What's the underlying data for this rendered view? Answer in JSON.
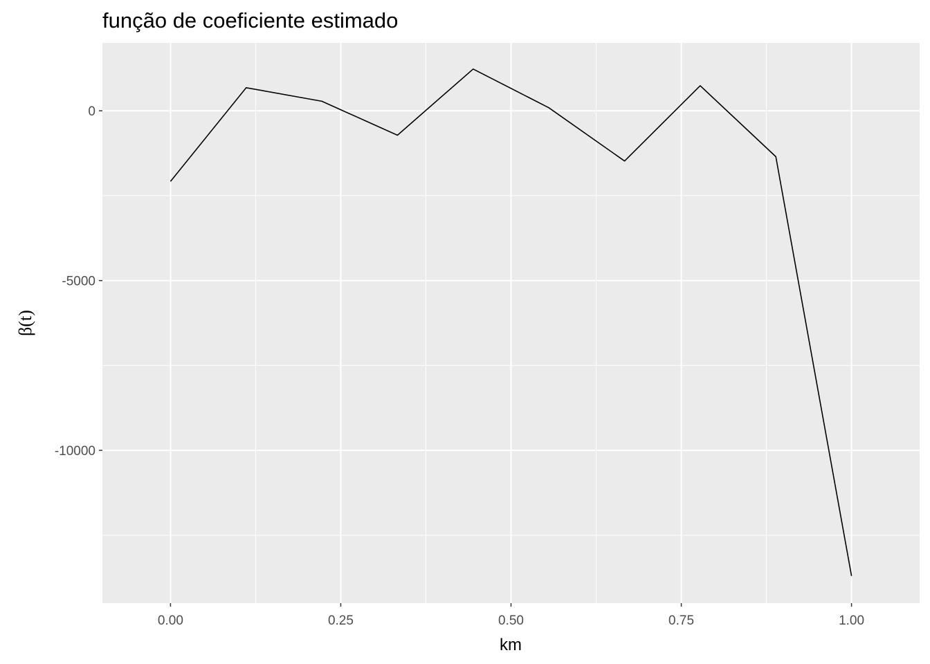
{
  "chart_data": {
    "type": "line",
    "title": "função de coeficiente estimado",
    "xlabel": "km",
    "ylabel": "β(t)",
    "xlim": [
      -0.1,
      1.1
    ],
    "ylim": [
      -14500,
      2000
    ],
    "x_ticks": [
      0.0,
      0.25,
      0.5,
      0.75,
      1.0
    ],
    "x_tick_labels": [
      "0.00",
      "0.25",
      "0.50",
      "0.75",
      "1.00"
    ],
    "y_ticks": [
      0,
      -5000,
      -10000
    ],
    "y_tick_labels": [
      "0",
      "-5000",
      "-10000"
    ],
    "grid": true,
    "background": "#ebebeb",
    "line_color": "#000000",
    "series": [
      {
        "x": [
          0.0,
          0.1111,
          0.2222,
          0.3333,
          0.4444,
          0.5556,
          0.6667,
          0.7778,
          0.8889,
          1.0
        ],
        "values": [
          -2080,
          680,
          280,
          -720,
          1230,
          90,
          -1480,
          740,
          -1350,
          -13700
        ]
      }
    ]
  }
}
